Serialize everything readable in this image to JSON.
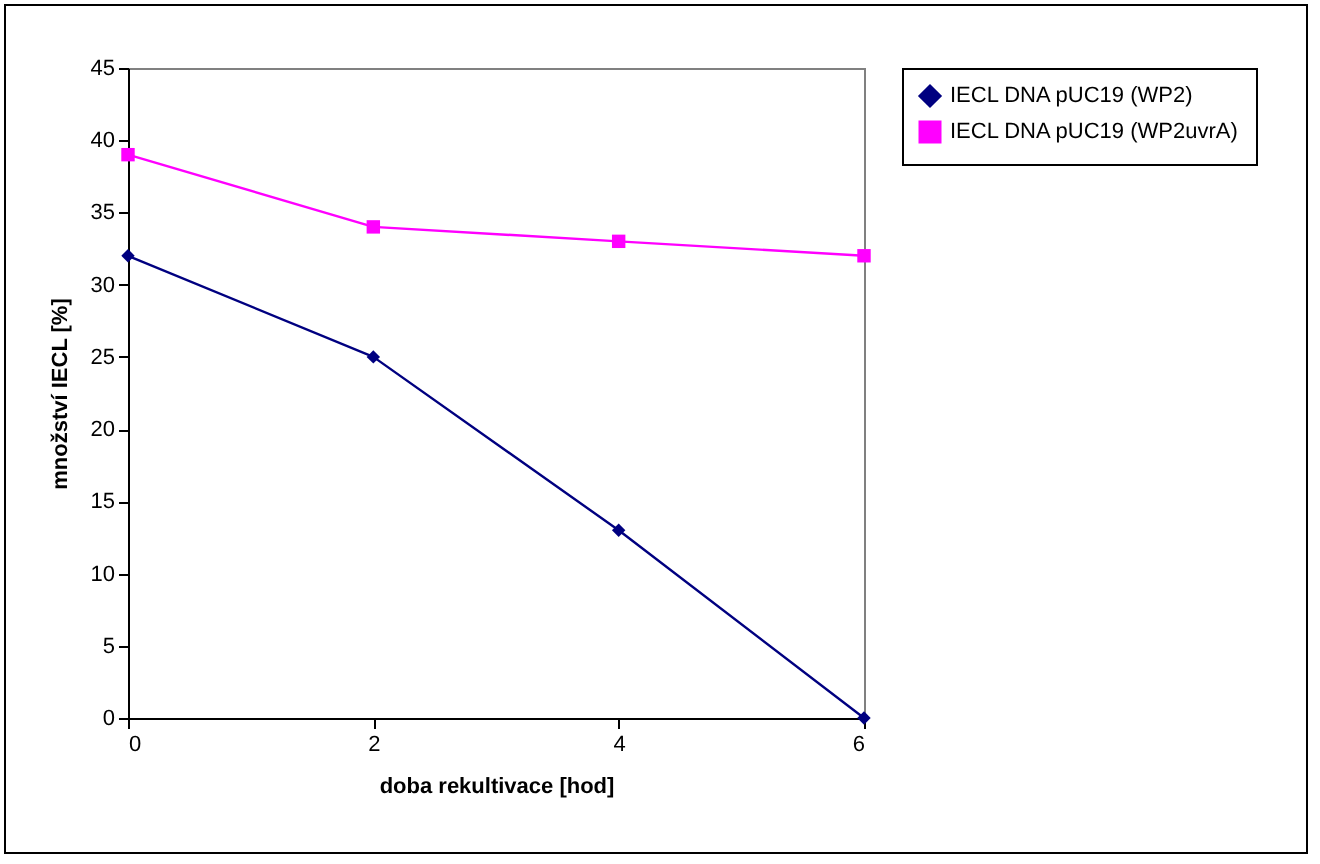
{
  "chart_data": {
    "type": "line",
    "xlabel": "doba rekultivace [hod]",
    "ylabel": "množství IECL [%]",
    "x": [
      0,
      2,
      4,
      6
    ],
    "series": [
      {
        "name": "IECL DNA pUC19 (WP2)",
        "color": "#000080",
        "marker": "diamond",
        "values": [
          32,
          25,
          13,
          0
        ]
      },
      {
        "name": "IECL DNA pUC19 (WP2uvrA)",
        "color": "#ff00ff",
        "marker": "square",
        "values": [
          39,
          34,
          33,
          32
        ]
      }
    ],
    "xlim": [
      0,
      6
    ],
    "xticks": [
      0,
      2,
      4,
      6
    ],
    "ylim": [
      0,
      45
    ],
    "yticks": [
      0,
      5,
      10,
      15,
      20,
      25,
      30,
      35,
      40,
      45
    ],
    "grid": false,
    "legend": "right",
    "line_style": "solid"
  }
}
